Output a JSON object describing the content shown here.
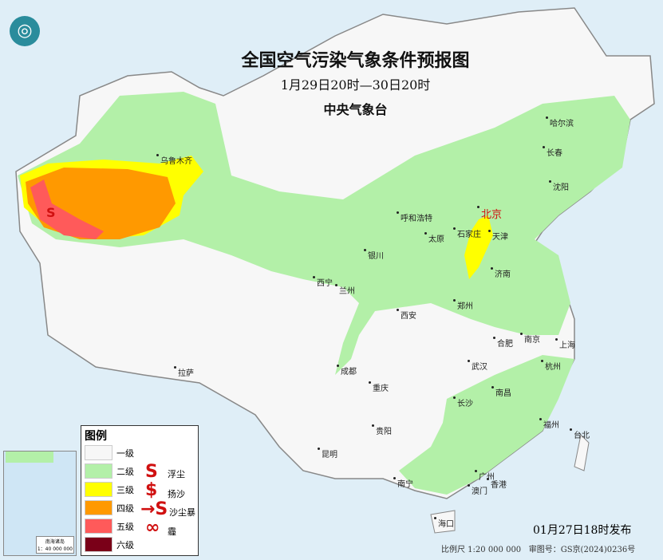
{
  "title": "全国空气污染气象条件预报图",
  "period": "1月29日20时—30日20时",
  "issuer": "中央气象台",
  "issue_time": "01月27日18时发布",
  "scale": "比例尺 1:20 000 000",
  "map_approval": "审图号：GS京(2024)0236号",
  "inset": {
    "label": "南海诸岛",
    "scale": "1：40 000 000"
  },
  "legend": {
    "title": "图例",
    "levels": [
      {
        "label": "一级",
        "color": "#f7f7f7"
      },
      {
        "label": "二级",
        "color": "#b3f0a8"
      },
      {
        "label": "三级",
        "color": "#ffff00"
      },
      {
        "label": "四级",
        "color": "#ff9900"
      },
      {
        "label": "五级",
        "color": "#ff5a5a"
      },
      {
        "label": "六级",
        "color": "#7a0018"
      }
    ],
    "symbols": [
      {
        "icon": "floating-dust-icon",
        "label": "浮尘"
      },
      {
        "icon": "blowing-sand-icon",
        "label": "扬沙"
      },
      {
        "icon": "sandstorm-icon",
        "label": "沙尘暴"
      },
      {
        "icon": "haze-icon",
        "label": "霾"
      }
    ]
  },
  "cities": [
    "乌鲁木齐",
    "哈尔滨",
    "长春",
    "沈阳",
    "北京",
    "天津",
    "呼和浩特",
    "石家庄",
    "太原",
    "银川",
    "济南",
    "西宁",
    "兰州",
    "郑州",
    "西安",
    "合肥",
    "南京",
    "上海",
    "成都",
    "武汉",
    "杭州",
    "拉萨",
    "重庆",
    "长沙",
    "南昌",
    "福州",
    "台北",
    "贵阳",
    "昆明",
    "南宁",
    "广州",
    "澳门",
    "香港",
    "海口"
  ]
}
